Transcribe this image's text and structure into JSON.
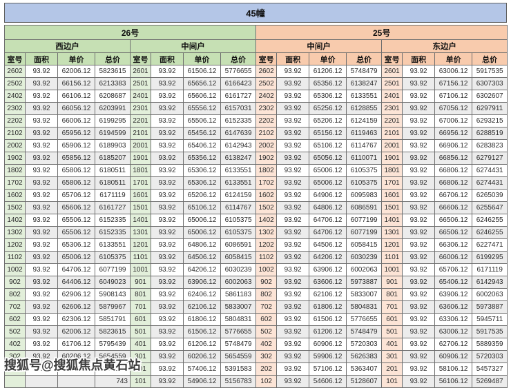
{
  "title": "45幢",
  "sections": [
    {
      "label": "26号",
      "groups": [
        "西边户",
        "中间户"
      ]
    },
    {
      "label": "25号",
      "groups": [
        "中间户",
        "东边户"
      ]
    }
  ],
  "column_headers": [
    "室号",
    "面积",
    "单价",
    "总价"
  ],
  "colors": {
    "title_band": "#b4c6e7",
    "section_26": "#c6e0b4",
    "section_25": "#f8cbad",
    "room_cell_26": "#e2efda",
    "room_cell_25": "#fce4d6",
    "row_band": "#ececec",
    "border": "#6e6e6e"
  },
  "watermark": {
    "text": "搜狐号@搜狐焦点黄石站",
    "visible_suffix_after": "743"
  },
  "rows": [
    [
      [
        "2602",
        "93.92",
        "62006.12",
        "5823615"
      ],
      [
        "2601",
        "93.92",
        "61506.12",
        "5776655"
      ],
      [
        "2602",
        "93.92",
        "61206.12",
        "5748479"
      ],
      [
        "2601",
        "93.92",
        "63006.12",
        "5917535"
      ]
    ],
    [
      [
        "2502",
        "93.92",
        "66156.12",
        "6213383"
      ],
      [
        "2501",
        "93.92",
        "65656.12",
        "6166423"
      ],
      [
        "2502",
        "93.92",
        "65356.12",
        "6138247"
      ],
      [
        "2501",
        "93.92",
        "67156.12",
        "6307303"
      ]
    ],
    [
      [
        "2402",
        "93.92",
        "66106.12",
        "6208687"
      ],
      [
        "2401",
        "93.92",
        "65606.12",
        "6161727"
      ],
      [
        "2402",
        "93.92",
        "65306.12",
        "6133551"
      ],
      [
        "2401",
        "93.92",
        "67106.12",
        "6302607"
      ]
    ],
    [
      [
        "2302",
        "93.92",
        "66056.12",
        "6203991"
      ],
      [
        "2301",
        "93.92",
        "65556.12",
        "6157031"
      ],
      [
        "2302",
        "93.92",
        "65256.12",
        "6128855"
      ],
      [
        "2301",
        "93.92",
        "67056.12",
        "6297911"
      ]
    ],
    [
      [
        "2202",
        "93.92",
        "66006.12",
        "6199295"
      ],
      [
        "2201",
        "93.92",
        "65506.12",
        "6152335"
      ],
      [
        "2202",
        "93.92",
        "65206.12",
        "6124159"
      ],
      [
        "2201",
        "93.92",
        "67006.12",
        "6293215"
      ]
    ],
    [
      [
        "2102",
        "93.92",
        "65956.12",
        "6194599"
      ],
      [
        "2101",
        "93.92",
        "65456.12",
        "6147639"
      ],
      [
        "2102",
        "93.92",
        "65156.12",
        "6119463"
      ],
      [
        "2101",
        "93.92",
        "66956.12",
        "6288519"
      ]
    ],
    [
      [
        "2002",
        "93.92",
        "65906.12",
        "6189903"
      ],
      [
        "2001",
        "93.92",
        "65406.12",
        "6142943"
      ],
      [
        "2002",
        "93.92",
        "65106.12",
        "6114767"
      ],
      [
        "2001",
        "93.92",
        "66906.12",
        "6283823"
      ]
    ],
    [
      [
        "1902",
        "93.92",
        "65856.12",
        "6185207"
      ],
      [
        "1901",
        "93.92",
        "65356.12",
        "6138247"
      ],
      [
        "1902",
        "93.92",
        "65056.12",
        "6110071"
      ],
      [
        "1901",
        "93.92",
        "66856.12",
        "6279127"
      ]
    ],
    [
      [
        "1802",
        "93.92",
        "65806.12",
        "6180511"
      ],
      [
        "1801",
        "93.92",
        "65306.12",
        "6133551"
      ],
      [
        "1802",
        "93.92",
        "65006.12",
        "6105375"
      ],
      [
        "1801",
        "93.92",
        "66806.12",
        "6274431"
      ]
    ],
    [
      [
        "1702",
        "93.92",
        "65806.12",
        "6180511"
      ],
      [
        "1701",
        "93.92",
        "65306.12",
        "6133551"
      ],
      [
        "1702",
        "93.92",
        "65006.12",
        "6105375"
      ],
      [
        "1701",
        "93.92",
        "66806.12",
        "6274431"
      ]
    ],
    [
      [
        "1602",
        "93.92",
        "65706.12",
        "6171119"
      ],
      [
        "1601",
        "93.92",
        "65206.12",
        "6124159"
      ],
      [
        "1602",
        "93.92",
        "64906.12",
        "6095983"
      ],
      [
        "1601",
        "93.92",
        "66706.12",
        "6265039"
      ]
    ],
    [
      [
        "1502",
        "93.92",
        "65606.12",
        "6161727"
      ],
      [
        "1501",
        "93.92",
        "65106.12",
        "6114767"
      ],
      [
        "1502",
        "93.92",
        "64806.12",
        "6086591"
      ],
      [
        "1501",
        "93.92",
        "66606.12",
        "6255647"
      ]
    ],
    [
      [
        "1402",
        "93.92",
        "65506.12",
        "6152335"
      ],
      [
        "1401",
        "93.92",
        "65006.12",
        "6105375"
      ],
      [
        "1402",
        "93.92",
        "64706.12",
        "6077199"
      ],
      [
        "1401",
        "93.92",
        "66506.12",
        "6246255"
      ]
    ],
    [
      [
        "1302",
        "93.92",
        "65506.12",
        "6152335"
      ],
      [
        "1301",
        "93.92",
        "65006.12",
        "6105375"
      ],
      [
        "1302",
        "93.92",
        "64706.12",
        "6077199"
      ],
      [
        "1301",
        "93.92",
        "66506.12",
        "6246255"
      ]
    ],
    [
      [
        "1202",
        "93.92",
        "65306.12",
        "6133551"
      ],
      [
        "1201",
        "93.92",
        "64806.12",
        "6086591"
      ],
      [
        "1202",
        "93.92",
        "64506.12",
        "6058415"
      ],
      [
        "1201",
        "93.92",
        "66306.12",
        "6227471"
      ]
    ],
    [
      [
        "1102",
        "93.92",
        "65006.12",
        "6105375"
      ],
      [
        "1101",
        "93.92",
        "64506.12",
        "6058415"
      ],
      [
        "1102",
        "93.92",
        "64206.12",
        "6030239"
      ],
      [
        "1101",
        "93.92",
        "66006.12",
        "6199295"
      ]
    ],
    [
      [
        "1002",
        "93.92",
        "64706.12",
        "6077199"
      ],
      [
        "1001",
        "93.92",
        "64206.12",
        "6030239"
      ],
      [
        "1002",
        "93.92",
        "63906.12",
        "6002063"
      ],
      [
        "1001",
        "93.92",
        "65706.12",
        "6171119"
      ]
    ],
    [
      [
        "902",
        "93.92",
        "64406.12",
        "6049023"
      ],
      [
        "901",
        "93.92",
        "63906.12",
        "6002063"
      ],
      [
        "902",
        "93.92",
        "63606.12",
        "5973887"
      ],
      [
        "901",
        "93.92",
        "65406.12",
        "6142943"
      ]
    ],
    [
      [
        "802",
        "93.92",
        "62906.12",
        "5908143"
      ],
      [
        "801",
        "93.92",
        "62406.12",
        "5861183"
      ],
      [
        "802",
        "93.92",
        "62106.12",
        "5833007"
      ],
      [
        "801",
        "93.92",
        "63906.12",
        "6002063"
      ]
    ],
    [
      [
        "702",
        "93.92",
        "62606.12",
        "5879967"
      ],
      [
        "701",
        "93.92",
        "62106.12",
        "5833007"
      ],
      [
        "702",
        "93.92",
        "61806.12",
        "5804831"
      ],
      [
        "701",
        "93.92",
        "63606.12",
        "5973887"
      ]
    ],
    [
      [
        "602",
        "93.92",
        "62306.12",
        "5851791"
      ],
      [
        "601",
        "93.92",
        "61806.12",
        "5804831"
      ],
      [
        "602",
        "93.92",
        "61506.12",
        "5776655"
      ],
      [
        "601",
        "93.92",
        "63306.12",
        "5945711"
      ]
    ],
    [
      [
        "502",
        "93.92",
        "62006.12",
        "5823615"
      ],
      [
        "501",
        "93.92",
        "61506.12",
        "5776655"
      ],
      [
        "502",
        "93.92",
        "61206.12",
        "5748479"
      ],
      [
        "501",
        "93.92",
        "63006.12",
        "5917535"
      ]
    ],
    [
      [
        "402",
        "93.92",
        "61706.12",
        "5795439"
      ],
      [
        "401",
        "93.92",
        "61206.12",
        "5748479"
      ],
      [
        "402",
        "93.92",
        "60906.12",
        "5720303"
      ],
      [
        "401",
        "93.92",
        "62706.12",
        "5889359"
      ]
    ],
    [
      [
        "302",
        "93.92",
        "60206.12",
        "5654559"
      ],
      [
        "301",
        "93.92",
        "60206.12",
        "5654559"
      ],
      [
        "302",
        "93.92",
        "59906.12",
        "5626383"
      ],
      [
        "301",
        "93.92",
        "60906.12",
        "5720303"
      ]
    ],
    [
      [
        "202",
        "93.92",
        "57406.12",
        "5391583"
      ],
      [
        "201",
        "93.92",
        "57406.12",
        "5391583"
      ],
      [
        "202",
        "93.92",
        "57106.12",
        "5363407"
      ],
      [
        "201",
        "93.92",
        "58106.12",
        "5457327"
      ]
    ],
    [
      [
        "",
        "",
        "",
        "743"
      ],
      [
        "101",
        "93.92",
        "54906.12",
        "5156783"
      ],
      [
        "102",
        "93.92",
        "54606.12",
        "5128607"
      ],
      [
        "101",
        "93.92",
        "56106.12",
        "5269487"
      ]
    ]
  ]
}
